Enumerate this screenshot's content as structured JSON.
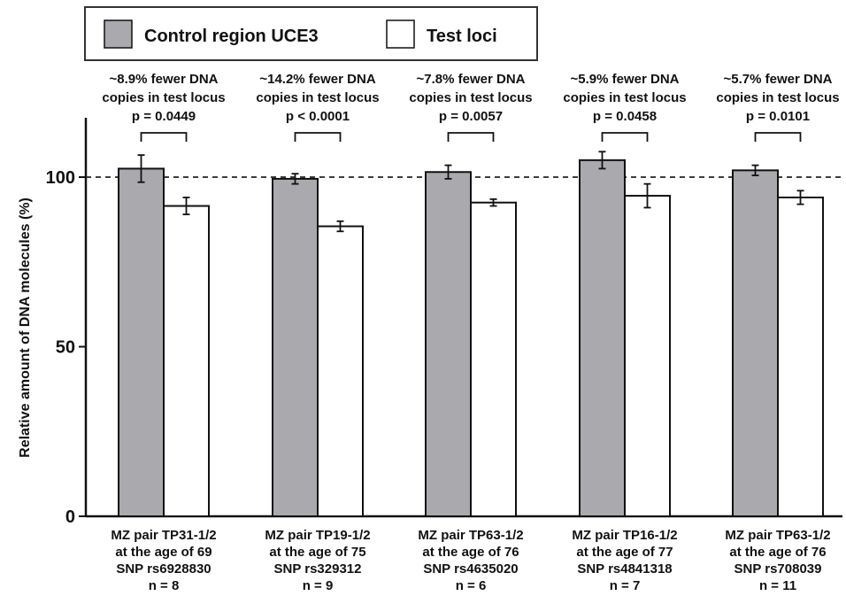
{
  "chart_data": {
    "type": "bar",
    "ylabel": "Relative amount  of DNA molecules (%)",
    "ylim": [
      0,
      120
    ],
    "yticks": [
      0,
      50,
      100
    ],
    "reference_line": 100,
    "legend_position": "top",
    "grid": false,
    "series": [
      {
        "name": "Control region UCE3",
        "color": "#a9a9ae",
        "values": [
          102.5,
          99.5,
          101.5,
          105,
          102
        ],
        "errors": [
          4.0,
          1.5,
          2.0,
          2.5,
          1.5
        ]
      },
      {
        "name": "Test loci",
        "color": "#ffffff",
        "values": [
          91.5,
          85.5,
          92.5,
          94.5,
          94
        ],
        "errors": [
          2.5,
          1.5,
          1.0,
          3.5,
          2.0
        ]
      }
    ],
    "groups": [
      {
        "label_lines": [
          "MZ pair TP31-1/2",
          "at the age of 69",
          "SNP rs6928830",
          "n = 8"
        ],
        "annotation_lines": [
          "~8.9% fewer DNA",
          "copies in test locus",
          "p = 0.0449"
        ]
      },
      {
        "label_lines": [
          "MZ pair TP19-1/2",
          "at the age of 75",
          "SNP rs329312",
          "n = 9"
        ],
        "annotation_lines": [
          "~14.2% fewer DNA",
          "copies in test locus",
          "p < 0.0001"
        ]
      },
      {
        "label_lines": [
          "MZ pair TP63-1/2",
          "at the age of 76",
          "SNP rs4635020",
          "n = 6"
        ],
        "annotation_lines": [
          "~7.8% fewer DNA",
          "copies in test locus",
          "p = 0.0057"
        ]
      },
      {
        "label_lines": [
          "MZ pair TP16-1/2",
          "at the age of 77",
          "SNP rs4841318",
          "n = 7"
        ],
        "annotation_lines": [
          "~5.9% fewer DNA",
          "copies in test locus",
          "p = 0.0458"
        ]
      },
      {
        "label_lines": [
          "MZ pair TP63-1/2",
          "at the age of 76",
          "SNP rs708039",
          "n = 11"
        ],
        "annotation_lines": [
          "~5.7% fewer DNA",
          "copies in test locus",
          "p = 0.0101"
        ]
      }
    ]
  }
}
